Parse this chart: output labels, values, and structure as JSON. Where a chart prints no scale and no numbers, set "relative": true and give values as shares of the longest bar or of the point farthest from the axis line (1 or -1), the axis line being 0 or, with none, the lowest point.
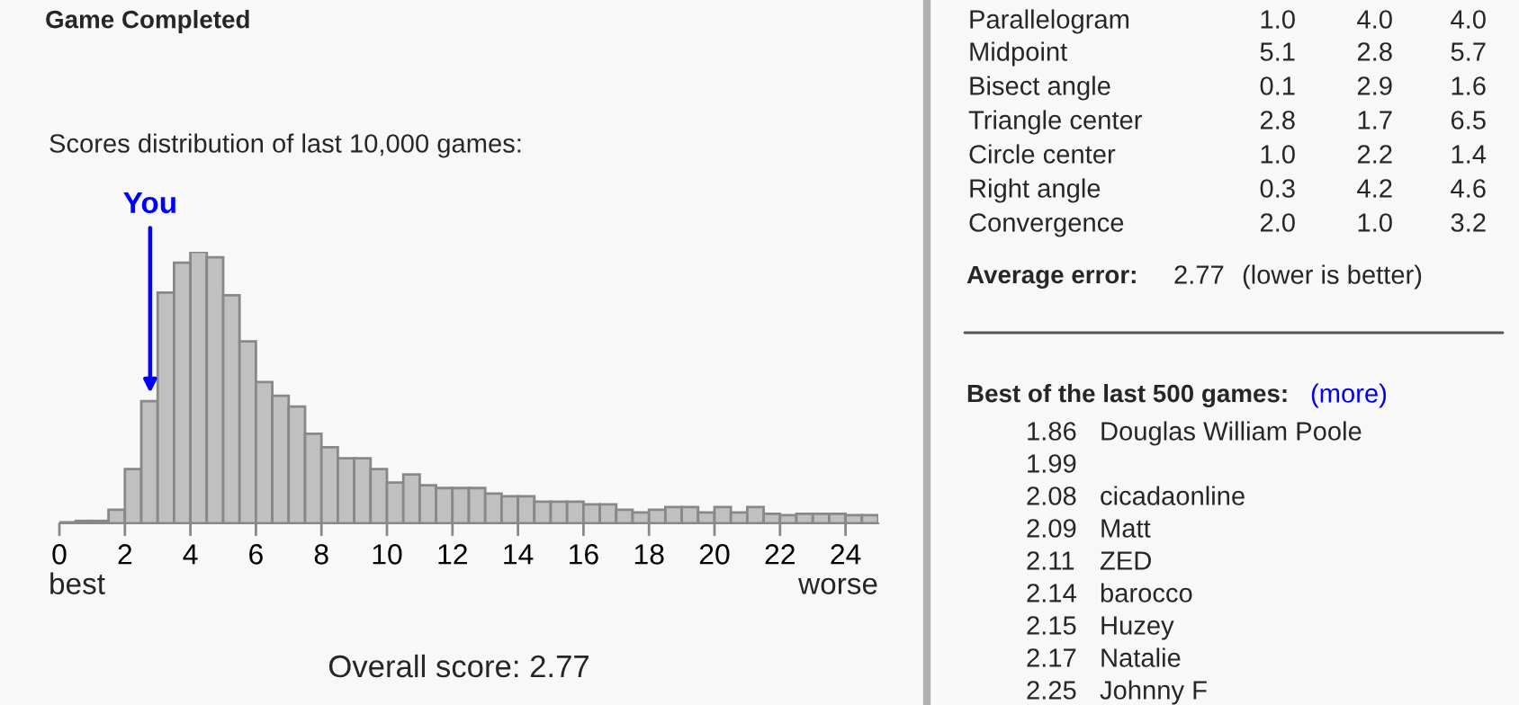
{
  "chart_data": {
    "type": "bar",
    "title": "Game Completed",
    "subtitle": "Scores distribution of last 10,000 games:",
    "relative": true,
    "x": [
      0.25,
      0.75,
      1.25,
      1.75,
      2.25,
      2.75,
      3.25,
      3.75,
      4.25,
      4.75,
      5.25,
      5.75,
      6.25,
      6.75,
      7.25,
      7.75,
      8.25,
      8.75,
      9.25,
      9.75,
      10.25,
      10.75,
      11.25,
      11.75,
      12.25,
      12.75,
      13.25,
      13.75,
      14.25,
      14.75,
      15.25,
      15.75,
      16.25,
      16.75,
      17.25,
      17.75,
      18.25,
      18.75,
      19.25,
      19.75,
      20.25,
      20.75,
      21.25,
      21.75,
      22.25,
      22.75,
      23.25,
      23.75,
      24.25,
      24.75
    ],
    "values": [
      0.004,
      0.009,
      0.009,
      0.05,
      0.2,
      0.45,
      0.85,
      0.96,
      1,
      0.98,
      0.84,
      0.67,
      0.52,
      0.47,
      0.43,
      0.33,
      0.28,
      0.24,
      0.24,
      0.2,
      0.15,
      0.18,
      0.14,
      0.13,
      0.13,
      0.13,
      0.11,
      0.1,
      0.1,
      0.08,
      0.08,
      0.08,
      0.07,
      0.07,
      0.05,
      0.04,
      0.05,
      0.06,
      0.06,
      0.04,
      0.06,
      0.04,
      0.06,
      0.035,
      0.03,
      0.035,
      0.035,
      0.035,
      0.03,
      0.03
    ],
    "color": "#c0c0c0",
    "xlim": [
      0,
      25
    ],
    "xticks": [
      0,
      2,
      4,
      6,
      8,
      10,
      12,
      14,
      16,
      18,
      20,
      22,
      24
    ],
    "grid": false,
    "annotations": [
      {
        "text": "You",
        "x": 2.77,
        "y": 0.48
      },
      "best",
      "worse",
      "Overall score: 2.77",
      "Parallelogram",
      "1.0",
      "4.0",
      "4.0",
      "Midpoint",
      "5.1",
      "2.8",
      "5.7",
      "Bisect angle",
      "0.1",
      "2.9",
      "1.6",
      "Triangle center",
      "2.8",
      "1.7",
      "6.5",
      "Circle center",
      "1.0",
      "2.2",
      "1.4",
      "Right angle",
      "0.3",
      "4.2",
      "4.6",
      "Convergence",
      "2.0",
      "1.0",
      "3.2",
      "Average error:",
      "2.77",
      "(lower is better)",
      "Best of the last 500 games:",
      "(more)",
      "1.86",
      "Douglas William Poole",
      "1.99",
      null,
      "2.08",
      "cicadaonline",
      "2.09",
      "Matt",
      "2.11",
      "ZED",
      "2.14",
      "barocco",
      "2.15",
      "Huzey",
      "2.17",
      "Natalie",
      "2.25",
      "Johnny F"
    ]
  }
}
